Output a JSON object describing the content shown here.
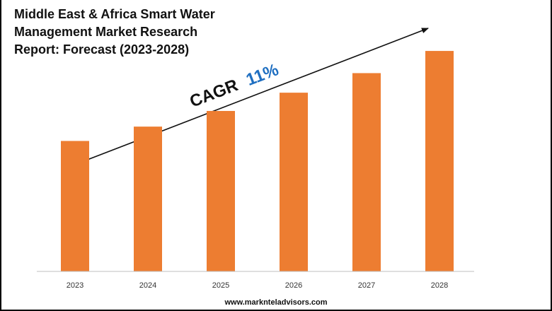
{
  "header": {
    "title_lines": [
      "Middle East & Africa Smart Water",
      "Management Market Research",
      "Report: Forecast (2023-2028)"
    ]
  },
  "annotation": {
    "cagr_label": "CAGR",
    "cagr_value": "11%"
  },
  "footer": {
    "url": "www.marknteladvisors.com"
  },
  "colors": {
    "bar": "#ED7D31",
    "cagr_value": "#1F6FC1",
    "axis": "#BFBFBF",
    "text": "#111111"
  },
  "chart_data": {
    "type": "bar",
    "title": "Middle East & Africa Smart Water Management Market Research Report: Forecast (2023-2028)",
    "categories": [
      "2023",
      "2024",
      "2025",
      "2026",
      "2027",
      "2028"
    ],
    "values": [
      1.0,
      1.11,
      1.23,
      1.37,
      1.52,
      1.69
    ],
    "value_unit": "relative index (2023 = 1.00)",
    "xlabel": "",
    "ylabel": "",
    "ylim": [
      0,
      1.75
    ],
    "grid": false,
    "legend": "none",
    "annotation": "CAGR 11%"
  }
}
